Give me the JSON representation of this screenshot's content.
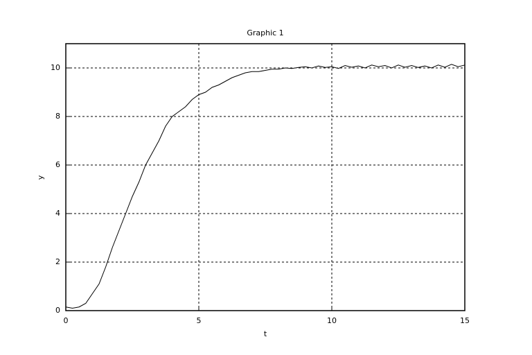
{
  "chart_data": {
    "type": "line",
    "title": "Graphic 1",
    "x_label": "t",
    "y_label": "y",
    "x": [
      0,
      0.25,
      0.5,
      0.75,
      1,
      1.25,
      1.5,
      1.75,
      2,
      2.25,
      2.5,
      2.75,
      3,
      3.25,
      3.5,
      3.75,
      4,
      4.25,
      4.5,
      4.75,
      5,
      5.25,
      5.5,
      5.75,
      6,
      6.25,
      6.5,
      6.75,
      7,
      7.25,
      7.5,
      7.75,
      8,
      8.25,
      8.5,
      8.75,
      9,
      9.25,
      9.5,
      9.75,
      10,
      10.25,
      10.5,
      10.75,
      11,
      11.25,
      11.5,
      11.75,
      12,
      12.25,
      12.5,
      12.75,
      13,
      13.25,
      13.5,
      13.75,
      14,
      14.25,
      14.5,
      14.75,
      15
    ],
    "series": [
      {
        "color": "#000000",
        "values": [
          0.15,
          0.1,
          0.15,
          0.3,
          0.7,
          1.1,
          1.8,
          2.6,
          3.3,
          4.0,
          4.7,
          5.3,
          6.0,
          6.5,
          7.0,
          7.6,
          8.0,
          8.2,
          8.4,
          8.7,
          8.9,
          9.0,
          9.2,
          9.3,
          9.45,
          9.6,
          9.7,
          9.8,
          9.85,
          9.85,
          9.9,
          9.95,
          9.95,
          10.0,
          9.98,
          10.02,
          10.05,
          10.0,
          10.08,
          10.02,
          10.05,
          9.98,
          10.1,
          10.03,
          10.08,
          10.0,
          10.12,
          10.05,
          10.1,
          10.0,
          10.12,
          10.03,
          10.1,
          10.02,
          10.08,
          10.0,
          10.12,
          10.03,
          10.15,
          10.05,
          10.12
        ]
      }
    ],
    "xlim": [
      0,
      15
    ],
    "ylim": [
      0,
      11
    ],
    "xticks": [
      0,
      5,
      10,
      15
    ],
    "yticks": [
      0,
      2,
      4,
      6,
      8,
      10
    ],
    "grid": true
  }
}
